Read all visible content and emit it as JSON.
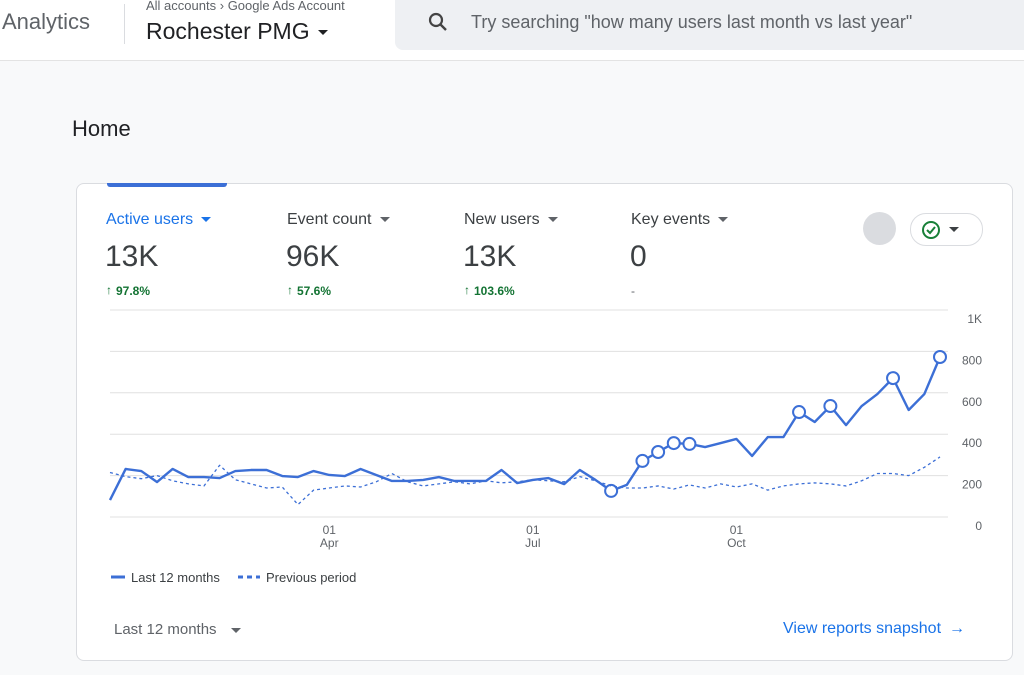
{
  "header": {
    "product": "Analytics",
    "breadcrumb": [
      "All accounts",
      "Google Ads Account"
    ],
    "account": "Rochester PMG",
    "search_placeholder": "Try searching \"how many users last month vs last year\""
  },
  "page_title": "Home",
  "metrics": [
    {
      "label": "Active users",
      "value": "13K",
      "change": "97.8%"
    },
    {
      "label": "Event count",
      "value": "96K",
      "change": "57.6%"
    },
    {
      "label": "New users",
      "value": "13K",
      "change": "103.6%"
    },
    {
      "label": "Key events",
      "value": "0",
      "change": "-"
    }
  ],
  "chart_data": {
    "type": "line",
    "categories": [
      null,
      null,
      null,
      null,
      null,
      null,
      null,
      null,
      null,
      null,
      null,
      null,
      null,
      null,
      "01 Apr",
      null,
      null,
      null,
      null,
      null,
      null,
      null,
      null,
      null,
      null,
      null,
      null,
      "01 Jul",
      null,
      null,
      null,
      null,
      null,
      null,
      null,
      null,
      null,
      null,
      null,
      null,
      "01 Oct",
      null,
      null,
      null,
      null,
      null,
      null,
      null,
      null,
      null,
      null,
      null,
      null,
      null
    ],
    "series": [
      {
        "name": "Last 12 months",
        "color": "#3c6fd6",
        "dashed": false,
        "values": [
          82,
          232,
          222,
          169,
          232,
          193,
          193,
          188,
          222,
          227,
          227,
          198,
          193,
          222,
          203,
          198,
          232,
          203,
          174,
          174,
          179,
          193,
          174,
          174,
          174,
          227,
          164,
          179,
          188,
          159,
          227,
          179,
          126,
          155,
          271,
          314,
          357,
          353,
          338,
          357,
          377,
          295,
          386,
          386,
          507,
          459,
          536,
          444,
          536,
          594,
          671,
          517,
          594,
          773
        ],
        "markers": [
          32,
          34,
          35,
          36,
          37,
          44,
          46,
          50,
          53
        ]
      },
      {
        "name": "Previous period",
        "color": "#3c6fd6",
        "dashed": true,
        "values": [
          215,
          195,
          185,
          200,
          175,
          160,
          150,
          250,
          180,
          160,
          140,
          145,
          60,
          130,
          140,
          150,
          145,
          170,
          210,
          170,
          150,
          160,
          170,
          160,
          175,
          165,
          170,
          180,
          175,
          170,
          195,
          175,
          150,
          140,
          140,
          150,
          135,
          155,
          140,
          160,
          145,
          160,
          130,
          150,
          160,
          165,
          160,
          150,
          175,
          210,
          210,
          200,
          240,
          290
        ]
      }
    ],
    "ylim": [
      0,
      1000
    ],
    "yticks": [
      0,
      200,
      400,
      600,
      800,
      {
        "value": 1000,
        "label": "1K"
      }
    ],
    "grid": true
  },
  "footer": {
    "range": "Last 12 months",
    "link": "View reports snapshot"
  }
}
